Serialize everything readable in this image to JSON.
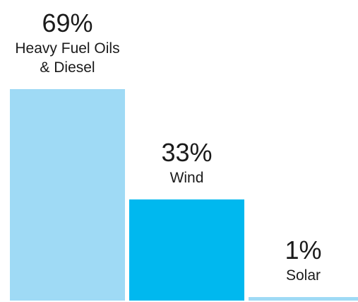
{
  "chart_data": {
    "type": "bar",
    "categories": [
      "Heavy Fuel Oils & Diesel",
      "Wind",
      "Solar"
    ],
    "values": [
      69,
      33,
      1
    ],
    "value_labels": [
      "69%",
      "33%",
      "1%"
    ],
    "label_lines": [
      [
        "Heavy Fuel Oils",
        "& Diesel"
      ],
      [
        "Wind"
      ],
      [
        "Solar"
      ]
    ],
    "colors": [
      "#9fdaf5",
      "#00b8ef",
      "#9fdaf5"
    ],
    "title": "",
    "xlabel": "",
    "ylabel": "",
    "ylim": [
      0,
      69
    ],
    "grid": false,
    "legend": "none"
  }
}
